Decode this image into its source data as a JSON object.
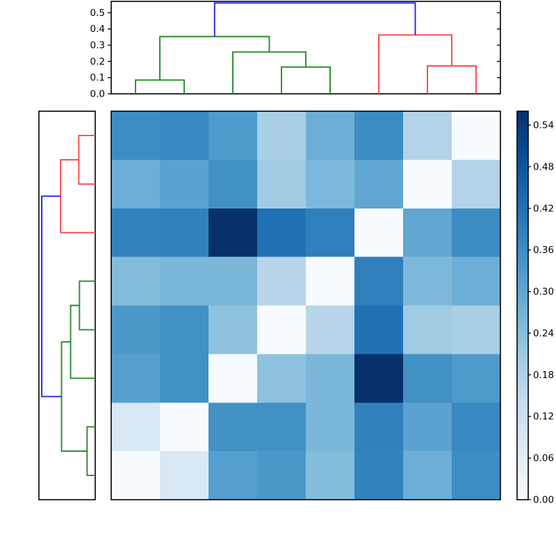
{
  "figure": {
    "background": "#ffffff",
    "description": "Hierarchically clustered heatmap with top and left dendrograms and a Blues colorbar"
  },
  "chart_data": {
    "type": "heatmap",
    "title": "",
    "xlabel": "",
    "ylabel": "",
    "n_rows": 8,
    "n_cols": 8,
    "vmin": 0.0,
    "vmax": 0.56,
    "colormap": "Blues",
    "colormap_stops": [
      "#f7fbff",
      "#deebf7",
      "#c6dbef",
      "#9ecae1",
      "#6baed6",
      "#4292c6",
      "#2171b5",
      "#08519c",
      "#08306b"
    ],
    "matrix": [
      [
        0.361,
        0.372,
        0.33,
        0.19,
        0.277,
        0.363,
        0.172,
        0.0
      ],
      [
        0.279,
        0.309,
        0.353,
        0.204,
        0.255,
        0.297,
        0.0,
        0.172
      ],
      [
        0.384,
        0.386,
        0.56,
        0.419,
        0.391,
        0.0,
        0.297,
        0.363
      ],
      [
        0.246,
        0.258,
        0.258,
        0.165,
        0.0,
        0.391,
        0.255,
        0.277
      ],
      [
        0.335,
        0.353,
        0.23,
        0.0,
        0.165,
        0.419,
        0.204,
        0.19
      ],
      [
        0.317,
        0.351,
        0.0,
        0.23,
        0.258,
        0.56,
        0.353,
        0.33
      ],
      [
        0.085,
        0.0,
        0.351,
        0.353,
        0.258,
        0.386,
        0.309,
        0.372
      ],
      [
        0.0,
        0.085,
        0.317,
        0.335,
        0.246,
        0.384,
        0.279,
        0.361
      ]
    ],
    "link_colors": {
      "green": "#2a8b2a",
      "red": "#fb4747",
      "blue": "#2222f5"
    },
    "top_dendrogram": {
      "orientation": "top",
      "ylim": [
        0,
        0.57
      ],
      "tick_values": [
        0.0,
        0.1,
        0.2,
        0.3,
        0.4,
        0.5
      ],
      "tick_labels": [
        "0.0",
        "0.1",
        "0.2",
        "0.3",
        "0.4",
        "0.5"
      ],
      "merges": [
        {
          "a": {
            "leaf": 0
          },
          "b": {
            "leaf": 1
          },
          "h": 0.085,
          "color": "green"
        },
        {
          "a": {
            "leaf": 3
          },
          "b": {
            "leaf": 4
          },
          "h": 0.165,
          "color": "green"
        },
        {
          "a": {
            "leaf": 2
          },
          "b": {
            "node": 1
          },
          "h": 0.258,
          "color": "green"
        },
        {
          "a": {
            "node": 0
          },
          "b": {
            "node": 2
          },
          "h": 0.353,
          "color": "green"
        },
        {
          "a": {
            "leaf": 6
          },
          "b": {
            "leaf": 7
          },
          "h": 0.172,
          "color": "red"
        },
        {
          "a": {
            "leaf": 5
          },
          "b": {
            "node": 4
          },
          "h": 0.363,
          "color": "red"
        },
        {
          "a": {
            "node": 3
          },
          "b": {
            "node": 5
          },
          "h": 0.56,
          "color": "blue"
        }
      ]
    },
    "left_dendrogram": {
      "orientation": "left",
      "xlim": [
        0,
        0.59
      ],
      "tick_values": [],
      "tick_labels": [],
      "merges": [
        {
          "a": {
            "leaf": 0
          },
          "b": {
            "leaf": 1
          },
          "h": 0.172,
          "color": "red"
        },
        {
          "a": {
            "node": 0
          },
          "b": {
            "leaf": 2
          },
          "h": 0.363,
          "color": "red"
        },
        {
          "a": {
            "leaf": 3
          },
          "b": {
            "leaf": 4
          },
          "h": 0.165,
          "color": "green"
        },
        {
          "a": {
            "node": 2
          },
          "b": {
            "leaf": 5
          },
          "h": 0.258,
          "color": "green"
        },
        {
          "a": {
            "leaf": 6
          },
          "b": {
            "leaf": 7
          },
          "h": 0.085,
          "color": "green"
        },
        {
          "a": {
            "node": 3
          },
          "b": {
            "node": 4
          },
          "h": 0.353,
          "color": "green"
        },
        {
          "a": {
            "node": 1
          },
          "b": {
            "node": 5
          },
          "h": 0.56,
          "color": "blue"
        }
      ]
    },
    "colorbar": {
      "tick_values": [
        0.0,
        0.06,
        0.12,
        0.18,
        0.24,
        0.3,
        0.36,
        0.42,
        0.48,
        0.54
      ],
      "tick_labels": [
        "0.00",
        "0.06",
        "0.12",
        "0.18",
        "0.24",
        "0.30",
        "0.36",
        "0.42",
        "0.48",
        "0.54"
      ],
      "position": "right"
    },
    "grid": false,
    "legend": false
  }
}
